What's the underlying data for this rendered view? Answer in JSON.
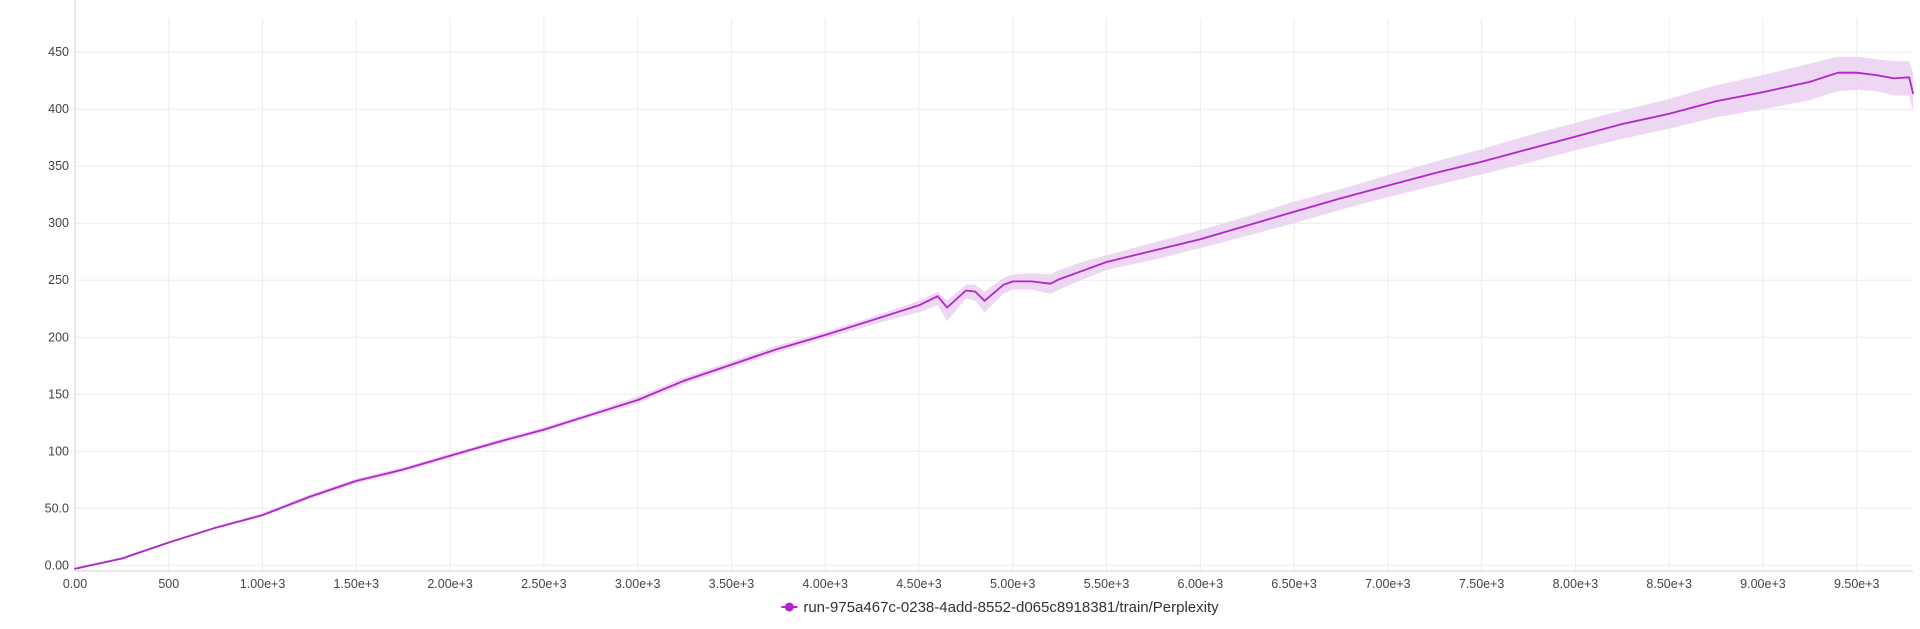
{
  "chart_data": {
    "type": "line",
    "title": "",
    "xlabel": "",
    "ylabel": "",
    "xlim": [
      0,
      9800
    ],
    "ylim": [
      -5,
      480
    ],
    "grid": true,
    "legend_position": "bottom-center",
    "x_ticks": [
      {
        "value": 0,
        "label": "0.00"
      },
      {
        "value": 500,
        "label": "500"
      },
      {
        "value": 1000,
        "label": "1.00e+3"
      },
      {
        "value": 1500,
        "label": "1.50e+3"
      },
      {
        "value": 2000,
        "label": "2.00e+3"
      },
      {
        "value": 2500,
        "label": "2.50e+3"
      },
      {
        "value": 3000,
        "label": "3.00e+3"
      },
      {
        "value": 3500,
        "label": "3.50e+3"
      },
      {
        "value": 4000,
        "label": "4.00e+3"
      },
      {
        "value": 4500,
        "label": "4.50e+3"
      },
      {
        "value": 5000,
        "label": "5.00e+3"
      },
      {
        "value": 5500,
        "label": "5.50e+3"
      },
      {
        "value": 6000,
        "label": "6.00e+3"
      },
      {
        "value": 6500,
        "label": "6.50e+3"
      },
      {
        "value": 7000,
        "label": "7.00e+3"
      },
      {
        "value": 7500,
        "label": "7.50e+3"
      },
      {
        "value": 8000,
        "label": "8.00e+3"
      },
      {
        "value": 8500,
        "label": "8.50e+3"
      },
      {
        "value": 9000,
        "label": "9.00e+3"
      },
      {
        "value": 9500,
        "label": "9.50e+3"
      }
    ],
    "y_ticks": [
      {
        "value": 0,
        "label": "0.00"
      },
      {
        "value": 50,
        "label": "50.0"
      },
      {
        "value": 100,
        "label": "100"
      },
      {
        "value": 150,
        "label": "150"
      },
      {
        "value": 200,
        "label": "200"
      },
      {
        "value": 250,
        "label": "250"
      },
      {
        "value": 300,
        "label": "300"
      },
      {
        "value": 350,
        "label": "350"
      },
      {
        "value": 400,
        "label": "400"
      },
      {
        "value": 450,
        "label": "450"
      }
    ],
    "series": [
      {
        "name": "run-975a467c-0238-4add-8552-d065c8918381/train/Perplexity",
        "color": "#b125c9",
        "band_color": "#ead0f0",
        "x": [
          0,
          250,
          500,
          750,
          1000,
          1250,
          1500,
          1750,
          2000,
          2250,
          2500,
          2750,
          3000,
          3250,
          3500,
          3750,
          4000,
          4250,
          4500,
          4600,
          4650,
          4750,
          4800,
          4850,
          4950,
          5000,
          5100,
          5200,
          5250,
          5350,
          5500,
          5750,
          6000,
          6250,
          6500,
          6750,
          7000,
          7250,
          7500,
          7750,
          8000,
          8250,
          8500,
          8750,
          9000,
          9250,
          9400,
          9500,
          9600,
          9700,
          9780,
          9800
        ],
        "y": [
          -3,
          6,
          20,
          33,
          44,
          60,
          74,
          84,
          96,
          108,
          119,
          132,
          145,
          162,
          176,
          190,
          202,
          215,
          228,
          236,
          226,
          241,
          240,
          232,
          246,
          249,
          249,
          247,
          251,
          257,
          266,
          276,
          286,
          298,
          310,
          322,
          333,
          344,
          354,
          365,
          376,
          387,
          396,
          407,
          415,
          424,
          432,
          432,
          430,
          427,
          428,
          414
        ],
        "band_upper": [
          -2,
          7,
          21,
          34,
          46,
          62,
          76,
          86,
          98,
          110,
          121,
          134,
          148,
          165,
          179,
          193,
          205,
          218,
          232,
          240,
          232,
          246,
          246,
          240,
          252,
          255,
          256,
          255,
          259,
          265,
          272,
          283,
          294,
          306,
          319,
          330,
          342,
          354,
          365,
          377,
          388,
          399,
          409,
          421,
          430,
          440,
          446,
          446,
          444,
          442,
          442,
          432
        ],
        "band_lower": [
          -4,
          5,
          19,
          32,
          43,
          58,
          72,
          82,
          94,
          106,
          117,
          130,
          142,
          159,
          173,
          187,
          199,
          211,
          222,
          228,
          214,
          234,
          232,
          222,
          238,
          242,
          242,
          238,
          242,
          249,
          259,
          268,
          278,
          289,
          300,
          312,
          323,
          333,
          343,
          353,
          364,
          374,
          383,
          393,
          400,
          408,
          416,
          417,
          416,
          412,
          412,
          398
        ]
      }
    ]
  }
}
